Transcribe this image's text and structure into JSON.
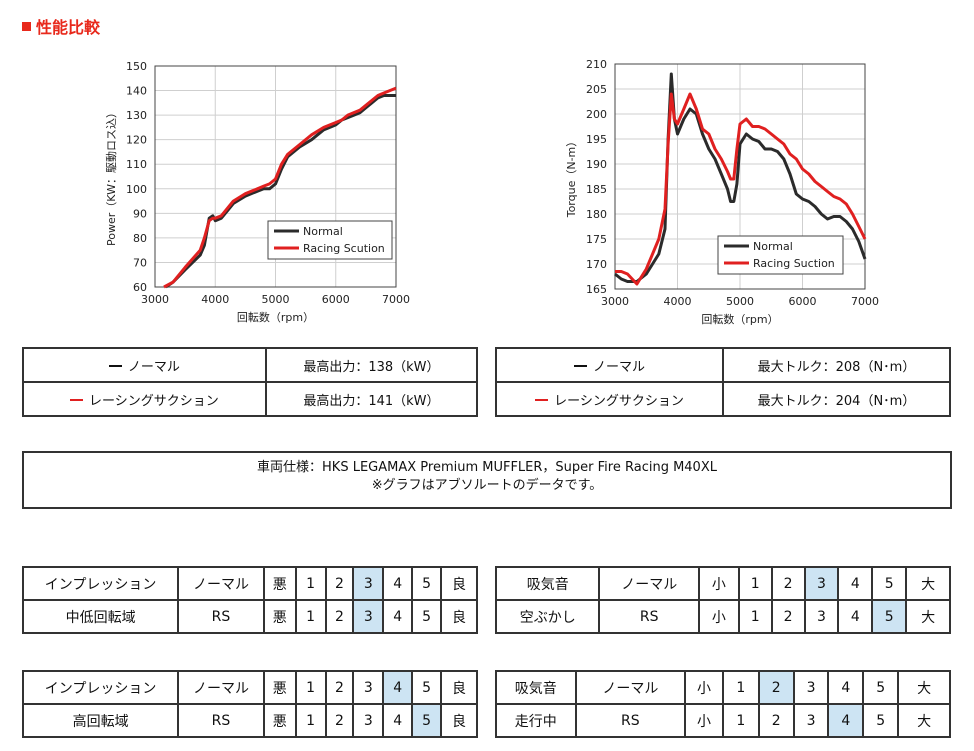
{
  "heading": "性能比較",
  "chart_data": [
    {
      "type": "line",
      "title": "",
      "xlabel": "回転数（rpm）",
      "ylabel": "Power（KW：駆動ロス込）",
      "xlim": [
        3000,
        7000
      ],
      "ylim": [
        60,
        150
      ],
      "xticks": [
        3000,
        4000,
        5000,
        6000,
        7000
      ],
      "yticks": [
        60,
        70,
        80,
        90,
        100,
        110,
        120,
        130,
        140,
        150
      ],
      "legend_position": "bottom-right",
      "series": [
        {
          "name": "Normal",
          "color": "#2b2b2b",
          "x": [
            3180,
            3300,
            3500,
            3750,
            3820,
            3900,
            3960,
            4000,
            4100,
            4200,
            4300,
            4500,
            4700,
            4800,
            4900,
            5000,
            5100,
            5200,
            5400,
            5600,
            5800,
            6000,
            6100,
            6200,
            6400,
            6500,
            6600,
            6700,
            6800,
            7000
          ],
          "y": [
            60,
            62,
            67,
            73,
            77,
            88,
            89,
            87,
            88,
            91,
            94,
            97,
            99,
            100,
            100,
            102,
            108,
            113,
            117,
            120,
            124,
            126,
            128,
            129,
            131,
            133,
            135,
            137,
            138,
            138
          ]
        },
        {
          "name": "Racing Scution",
          "color": "#e02020",
          "x": [
            3150,
            3300,
            3500,
            3750,
            3820,
            3900,
            3960,
            4000,
            4100,
            4200,
            4300,
            4500,
            4700,
            4800,
            4900,
            5000,
            5100,
            5200,
            5400,
            5600,
            5800,
            6000,
            6100,
            6200,
            6400,
            6500,
            6600,
            6700,
            6800,
            7000
          ],
          "y": [
            60,
            62,
            68,
            75,
            80,
            87,
            88,
            88,
            89,
            92,
            95,
            98,
            100,
            101,
            102,
            104,
            110,
            114,
            118,
            122,
            125,
            127,
            128,
            130,
            132,
            134,
            136,
            138,
            139,
            141
          ]
        }
      ]
    },
    {
      "type": "line",
      "title": "",
      "xlabel": "回転数（rpm）",
      "ylabel": "Torque（N-m）",
      "xlim": [
        3000,
        7000
      ],
      "ylim": [
        165,
        210
      ],
      "xticks": [
        3000,
        4000,
        5000,
        6000,
        7000
      ],
      "yticks": [
        165,
        170,
        175,
        180,
        185,
        190,
        195,
        200,
        205,
        210
      ],
      "legend_position": "bottom-right",
      "series": [
        {
          "name": "Normal",
          "color": "#2b2b2b",
          "x": [
            3000,
            3100,
            3200,
            3350,
            3500,
            3700,
            3800,
            3850,
            3900,
            3950,
            4000,
            4100,
            4200,
            4300,
            4400,
            4500,
            4600,
            4700,
            4800,
            4850,
            4900,
            4950,
            5000,
            5100,
            5200,
            5300,
            5400,
            5500,
            5600,
            5700,
            5800,
            5900,
            6000,
            6100,
            6200,
            6300,
            6400,
            6500,
            6600,
            6700,
            6800,
            6900,
            7000
          ],
          "y": [
            168,
            167,
            166.5,
            166.5,
            168,
            172,
            177,
            195,
            208,
            199,
            196,
            199,
            201,
            200,
            196,
            193,
            191,
            188,
            185,
            182.5,
            182.5,
            186,
            194,
            196,
            195,
            194.5,
            193,
            193,
            192.5,
            191,
            188,
            184,
            183,
            182.5,
            181.5,
            180,
            179,
            179.5,
            179.5,
            178.5,
            177,
            174.5,
            171
          ]
        },
        {
          "name": "Racing Suction",
          "color": "#e02020",
          "x": [
            3000,
            3100,
            3200,
            3350,
            3500,
            3700,
            3800,
            3850,
            3900,
            3950,
            4000,
            4100,
            4200,
            4300,
            4400,
            4500,
            4600,
            4700,
            4800,
            4850,
            4900,
            4950,
            5000,
            5100,
            5200,
            5300,
            5400,
            5500,
            5600,
            5700,
            5800,
            5900,
            6000,
            6100,
            6200,
            6300,
            6400,
            6500,
            6600,
            6700,
            6800,
            6900,
            7000
          ],
          "y": [
            168.5,
            168.5,
            168,
            166,
            169,
            175,
            181,
            194,
            204,
            199,
            198,
            201,
            204,
            201,
            197,
            196,
            193,
            191,
            188.5,
            187,
            187,
            193,
            198,
            199,
            197.5,
            197.5,
            197,
            196,
            195,
            194,
            192,
            191,
            189,
            188,
            186.5,
            185.5,
            184.5,
            183.5,
            183,
            182,
            180,
            177.5,
            175
          ]
        }
      ]
    }
  ],
  "summary_left": {
    "rows": [
      {
        "marker_color": "#111111",
        "label": "ノーマル",
        "value": "最高出力：138（kW）"
      },
      {
        "marker_color": "#e02020",
        "label": "レーシングサクション",
        "value": "最高出力：141（kW）"
      }
    ]
  },
  "summary_right": {
    "rows": [
      {
        "marker_color": "#111111",
        "label": "ノーマル",
        "value": "最大トルク：208（N･m）"
      },
      {
        "marker_color": "#e02020",
        "label": "レーシングサクション",
        "value": "最大トルク：204（N･m）"
      }
    ]
  },
  "spec": {
    "line1": "車両仕様：HKS LEGAMAX Premium MUFFLER，Super Fire Racing M40XL",
    "line2": "※グラフはアブソルートのデータです。"
  },
  "ratings": [
    {
      "rows": [
        {
          "cells": [
            "インプレッション",
            "ノーマル",
            "悪",
            "1",
            "2",
            "3",
            "4",
            "5",
            "良"
          ],
          "highlight": 5
        },
        {
          "cells": [
            "中低回転域",
            "RS",
            "悪",
            "1",
            "2",
            "3",
            "4",
            "5",
            "良"
          ],
          "highlight": 5
        }
      ]
    },
    {
      "rows": [
        {
          "cells": [
            "吸気音",
            "ノーマル",
            "小",
            "1",
            "2",
            "3",
            "4",
            "5",
            "大"
          ],
          "highlight": 5
        },
        {
          "cells": [
            "空ぶかし",
            "RS",
            "小",
            "1",
            "2",
            "3",
            "4",
            "5",
            "大"
          ],
          "highlight": 7
        }
      ]
    },
    {
      "rows": [
        {
          "cells": [
            "インプレッション",
            "ノーマル",
            "悪",
            "1",
            "2",
            "3",
            "4",
            "5",
            "良"
          ],
          "highlight": 6
        },
        {
          "cells": [
            "高回転域",
            "RS",
            "悪",
            "1",
            "2",
            "3",
            "4",
            "5",
            "良"
          ],
          "highlight": 7
        }
      ]
    },
    {
      "rows": [
        {
          "cells": [
            "吸気音",
            "ノーマル",
            "小",
            "1",
            "2",
            "3",
            "4",
            "5",
            "大"
          ],
          "highlight": 4
        },
        {
          "cells": [
            "走行中",
            "RS",
            "小",
            "1",
            "2",
            "3",
            "4",
            "5",
            "大"
          ],
          "highlight": 6
        }
      ]
    }
  ]
}
